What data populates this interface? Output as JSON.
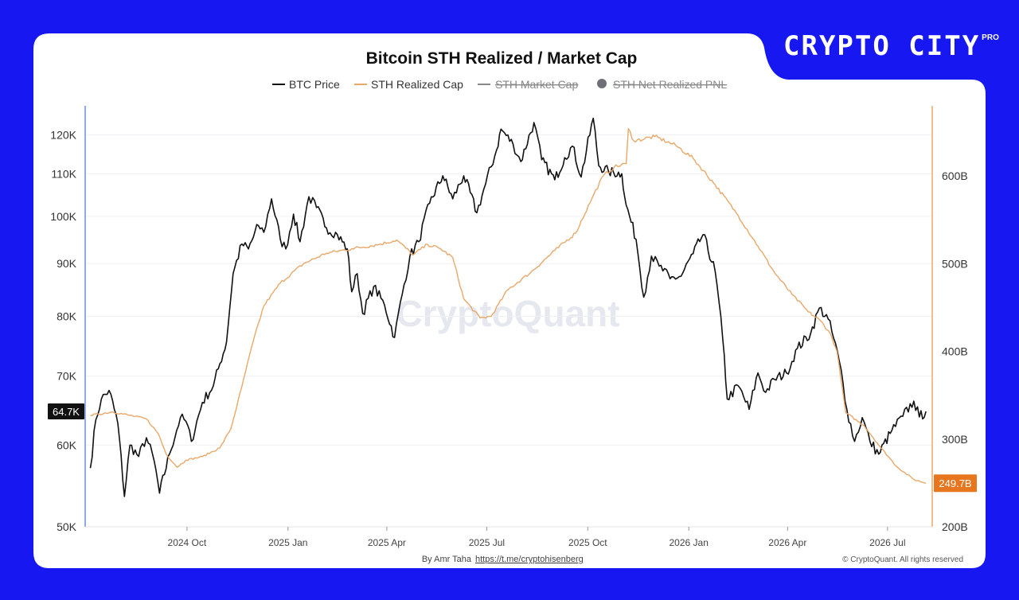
{
  "brand": {
    "name": "CRYPTO CITY",
    "badge": "PRO"
  },
  "colors": {
    "background": "#1717f2",
    "card": "#ffffff",
    "btc": "#111111",
    "sth": "#e8a86a",
    "tag_orange": "#e8761e",
    "axis_left": "#6e8fdc",
    "axis_right": "#e8a86a"
  },
  "footer": {
    "author": "By Amr Taha",
    "link": "https://t.me/cryptohisenberg",
    "copyright": "© CryptoQuant. All rights reserved"
  },
  "watermark": "CryptoQuant",
  "chart_data": {
    "type": "line",
    "title": "Bitcoin STH Realized / Market Cap",
    "legend": [
      {
        "name": "BTC Price",
        "hidden": false
      },
      {
        "name": "STH Realized Cap",
        "hidden": false
      },
      {
        "name": "STH Market Cap",
        "hidden": true
      },
      {
        "name": "STH Net Realized PNL",
        "hidden": true
      }
    ],
    "x_ticks": [
      "2024 Oct",
      "2025 Jan",
      "2025 Apr",
      "2025 Jul",
      "2025 Oct",
      "2026 Jan",
      "2026 Apr",
      "2026 Jul"
    ],
    "x_range": [
      "2024-07-01",
      "2026-08-10"
    ],
    "y_left": {
      "scale": "log",
      "range": [
        50000,
        128000
      ],
      "ticks": [
        {
          "value": 50000,
          "label": "50K"
        },
        {
          "value": 60000,
          "label": "60K"
        },
        {
          "value": 70000,
          "label": "70K"
        },
        {
          "value": 80000,
          "label": "80K"
        },
        {
          "value": 90000,
          "label": "90K"
        },
        {
          "value": 100000,
          "label": "100K"
        },
        {
          "value": 110000,
          "label": "110K"
        },
        {
          "value": 120000,
          "label": "120K"
        }
      ]
    },
    "y_right": {
      "scale": "linear",
      "range": [
        200,
        680
      ],
      "ticks": [
        {
          "value": 200,
          "label": "200B"
        },
        {
          "value": 300,
          "label": "300B"
        },
        {
          "value": 400,
          "label": "400B"
        },
        {
          "value": 500,
          "label": "500B"
        },
        {
          "value": 600,
          "label": "600B"
        }
      ]
    },
    "last_values": {
      "btc": {
        "value": 64700,
        "label": "64.7K"
      },
      "sth": {
        "value": 249.7,
        "label": "249.7B"
      }
    },
    "series": [
      {
        "name": "BTC Price",
        "axis": "left",
        "color": "#111111",
        "points": [
          [
            "2024-07-05",
            57000
          ],
          [
            "2024-07-10",
            63500
          ],
          [
            "2024-07-15",
            66500
          ],
          [
            "2024-07-22",
            67800
          ],
          [
            "2024-07-30",
            63000
          ],
          [
            "2024-08-05",
            53500
          ],
          [
            "2024-08-10",
            60000
          ],
          [
            "2024-08-18",
            58500
          ],
          [
            "2024-08-25",
            61000
          ],
          [
            "2024-09-01",
            58000
          ],
          [
            "2024-09-06",
            53900
          ],
          [
            "2024-09-15",
            58800
          ],
          [
            "2024-09-25",
            63800
          ],
          [
            "2024-09-30",
            63300
          ],
          [
            "2024-10-05",
            60500
          ],
          [
            "2024-10-15",
            66000
          ],
          [
            "2024-10-25",
            68500
          ],
          [
            "2024-10-31",
            72000
          ],
          [
            "2024-11-06",
            75500
          ],
          [
            "2024-11-12",
            88000
          ],
          [
            "2024-11-20",
            94000
          ],
          [
            "2024-11-26",
            93000
          ],
          [
            "2024-12-05",
            98000
          ],
          [
            "2024-12-10",
            96500
          ],
          [
            "2024-12-17",
            104000
          ],
          [
            "2024-12-25",
            95000
          ],
          [
            "2024-12-30",
            93000
          ],
          [
            "2025-01-06",
            100500
          ],
          [
            "2025-01-12",
            94500
          ],
          [
            "2025-01-20",
            104500
          ],
          [
            "2025-01-27",
            102000
          ],
          [
            "2025-02-05",
            97500
          ],
          [
            "2025-02-15",
            96000
          ],
          [
            "2025-02-24",
            93000
          ],
          [
            "2025-02-28",
            84500
          ],
          [
            "2025-03-05",
            88000
          ],
          [
            "2025-03-10",
            80500
          ],
          [
            "2025-03-20",
            85500
          ],
          [
            "2025-03-30",
            82000
          ],
          [
            "2025-04-08",
            76300
          ],
          [
            "2025-04-15",
            84000
          ],
          [
            "2025-04-22",
            91500
          ],
          [
            "2025-04-30",
            94500
          ],
          [
            "2025-05-10",
            103000
          ],
          [
            "2025-05-22",
            109500
          ],
          [
            "2025-05-31",
            104000
          ],
          [
            "2025-06-10",
            109500
          ],
          [
            "2025-06-22",
            100800
          ],
          [
            "2025-06-30",
            107500
          ],
          [
            "2025-07-10",
            116000
          ],
          [
            "2025-07-14",
            121500
          ],
          [
            "2025-07-25",
            117500
          ],
          [
            "2025-08-01",
            113000
          ],
          [
            "2025-08-13",
            123300
          ],
          [
            "2025-08-20",
            113500
          ],
          [
            "2025-09-01",
            108500
          ],
          [
            "2025-09-10",
            114000
          ],
          [
            "2025-09-17",
            117000
          ],
          [
            "2025-09-25",
            109200
          ],
          [
            "2025-10-06",
            124500
          ],
          [
            "2025-10-11",
            112000
          ],
          [
            "2025-10-20",
            110500
          ],
          [
            "2025-11-01",
            110000
          ],
          [
            "2025-11-05",
            102500
          ],
          [
            "2025-11-14",
            95000
          ],
          [
            "2025-11-21",
            83500
          ],
          [
            "2025-11-28",
            91500
          ],
          [
            "2025-12-05",
            89500
          ],
          [
            "2025-12-15",
            87000
          ],
          [
            "2025-12-25",
            87500
          ],
          [
            "2026-01-05",
            92000
          ],
          [
            "2026-01-14",
            96000
          ],
          [
            "2026-01-25",
            88500
          ],
          [
            "2026-02-01",
            76000
          ],
          [
            "2026-02-05",
            66500
          ],
          [
            "2026-02-15",
            68500
          ],
          [
            "2026-02-25",
            65000
          ],
          [
            "2026-03-05",
            70500
          ],
          [
            "2026-03-12",
            67500
          ],
          [
            "2026-03-20",
            69500
          ],
          [
            "2026-03-31",
            70500
          ],
          [
            "2026-04-10",
            74500
          ],
          [
            "2026-04-22",
            77000
          ],
          [
            "2026-04-30",
            81500
          ],
          [
            "2026-05-08",
            79500
          ],
          [
            "2026-05-18",
            72500
          ],
          [
            "2026-05-25",
            65000
          ],
          [
            "2026-06-01",
            60500
          ],
          [
            "2026-06-08",
            63800
          ],
          [
            "2026-06-15",
            60500
          ],
          [
            "2026-06-23",
            58800
          ],
          [
            "2026-07-05",
            62000
          ],
          [
            "2026-07-15",
            64000
          ],
          [
            "2026-07-25",
            66200
          ],
          [
            "2026-07-30",
            63900
          ],
          [
            "2026-08-05",
            64700
          ]
        ]
      },
      {
        "name": "STH Realized Cap",
        "axis": "right",
        "color": "#e8a86a",
        "points": [
          [
            "2024-07-05",
            327
          ],
          [
            "2024-07-25",
            331
          ],
          [
            "2024-08-10",
            327
          ],
          [
            "2024-08-25",
            323
          ],
          [
            "2024-09-05",
            306
          ],
          [
            "2024-09-12",
            283
          ],
          [
            "2024-09-22",
            268
          ],
          [
            "2024-09-30",
            276
          ],
          [
            "2024-10-15",
            280
          ],
          [
            "2024-10-31",
            290
          ],
          [
            "2024-11-10",
            312
          ],
          [
            "2024-11-20",
            360
          ],
          [
            "2024-11-30",
            410
          ],
          [
            "2024-12-10",
            452
          ],
          [
            "2024-12-25",
            478
          ],
          [
            "2025-01-15",
            500
          ],
          [
            "2025-02-05",
            512
          ],
          [
            "2025-02-28",
            517
          ],
          [
            "2025-03-25",
            522
          ],
          [
            "2025-04-10",
            527
          ],
          [
            "2025-04-25",
            510
          ],
          [
            "2025-05-08",
            522
          ],
          [
            "2025-05-20",
            517
          ],
          [
            "2025-05-31",
            507
          ],
          [
            "2025-06-10",
            460
          ],
          [
            "2025-06-25",
            438
          ],
          [
            "2025-07-05",
            440
          ],
          [
            "2025-07-20",
            470
          ],
          [
            "2025-08-10",
            490
          ],
          [
            "2025-09-01",
            515
          ],
          [
            "2025-09-20",
            535
          ],
          [
            "2025-10-05",
            575
          ],
          [
            "2025-10-15",
            600
          ],
          [
            "2025-10-25",
            610
          ],
          [
            "2025-11-05",
            614
          ],
          [
            "2025-11-07",
            654
          ],
          [
            "2025-11-12",
            640
          ],
          [
            "2025-12-01",
            645
          ],
          [
            "2025-12-20",
            635
          ],
          [
            "2026-01-05",
            620
          ],
          [
            "2026-01-25",
            590
          ],
          [
            "2026-02-15",
            555
          ],
          [
            "2026-03-05",
            520
          ],
          [
            "2026-03-20",
            490
          ],
          [
            "2026-04-05",
            465
          ],
          [
            "2026-04-20",
            445
          ],
          [
            "2026-05-01",
            435
          ],
          [
            "2026-05-10",
            420
          ],
          [
            "2026-05-16",
            400
          ],
          [
            "2026-05-24",
            330
          ],
          [
            "2026-06-10",
            315
          ],
          [
            "2026-06-25",
            290
          ],
          [
            "2026-07-10",
            268
          ],
          [
            "2026-07-25",
            254
          ],
          [
            "2026-08-05",
            249.7
          ]
        ]
      }
    ]
  }
}
